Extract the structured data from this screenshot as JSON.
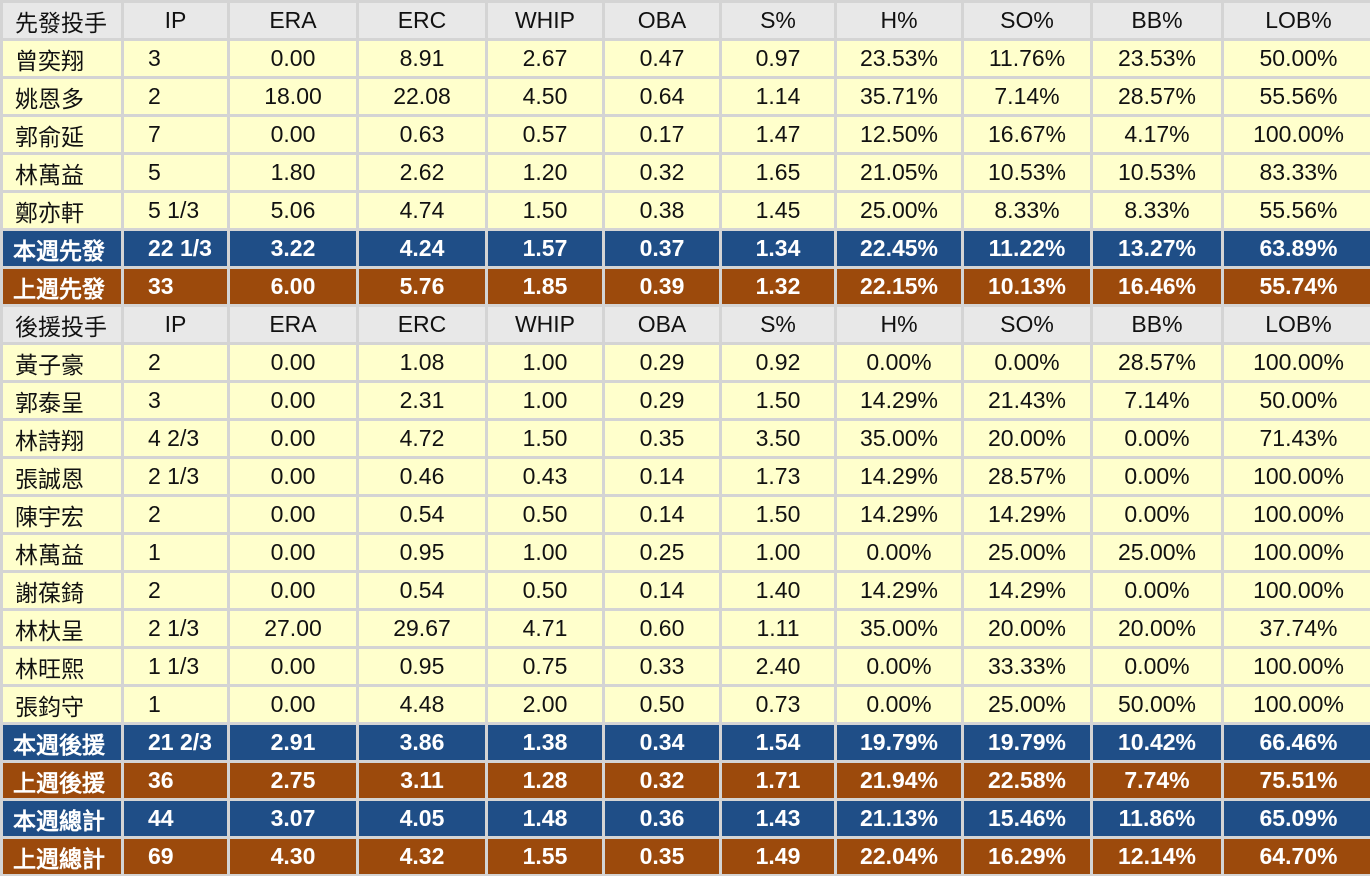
{
  "sections": [
    {
      "header": [
        "先發投手",
        "IP",
        "ERA",
        "ERC",
        "WHIP",
        "OBA",
        "S%",
        "H%",
        "SO%",
        "BB%",
        "LOB%"
      ],
      "rows": [
        [
          "曾奕翔",
          "3",
          "0.00",
          "8.91",
          "2.67",
          "0.47",
          "0.97",
          "23.53%",
          "11.76%",
          "23.53%",
          "50.00%"
        ],
        [
          "姚恩多",
          "2",
          "18.00",
          "22.08",
          "4.50",
          "0.64",
          "1.14",
          "35.71%",
          "7.14%",
          "28.57%",
          "55.56%"
        ],
        [
          "郭俞延",
          "7",
          "0.00",
          "0.63",
          "0.57",
          "0.17",
          "1.47",
          "12.50%",
          "16.67%",
          "4.17%",
          "100.00%"
        ],
        [
          "林萬益",
          "5",
          "1.80",
          "2.62",
          "1.20",
          "0.32",
          "1.65",
          "21.05%",
          "10.53%",
          "10.53%",
          "83.33%"
        ],
        [
          "鄭亦軒",
          "5 1/3",
          "5.06",
          "4.74",
          "1.50",
          "0.38",
          "1.45",
          "25.00%",
          "8.33%",
          "8.33%",
          "55.56%"
        ]
      ],
      "totals": [
        [
          "本週先發",
          "22 1/3",
          "3.22",
          "4.24",
          "1.57",
          "0.37",
          "1.34",
          "22.45%",
          "11.22%",
          "13.27%",
          "63.89%"
        ],
        [
          "上週先發",
          "33",
          "6.00",
          "5.76",
          "1.85",
          "0.39",
          "1.32",
          "22.15%",
          "10.13%",
          "16.46%",
          "55.74%"
        ]
      ]
    },
    {
      "header": [
        "後援投手",
        "IP",
        "ERA",
        "ERC",
        "WHIP",
        "OBA",
        "S%",
        "H%",
        "SO%",
        "BB%",
        "LOB%"
      ],
      "rows": [
        [
          "黃子豪",
          "2",
          "0.00",
          "1.08",
          "1.00",
          "0.29",
          "0.92",
          "0.00%",
          "0.00%",
          "28.57%",
          "100.00%"
        ],
        [
          "郭泰呈",
          "3",
          "0.00",
          "2.31",
          "1.00",
          "0.29",
          "1.50",
          "14.29%",
          "21.43%",
          "7.14%",
          "50.00%"
        ],
        [
          "林詩翔",
          "4 2/3",
          "0.00",
          "4.72",
          "1.50",
          "0.35",
          "3.50",
          "35.00%",
          "20.00%",
          "0.00%",
          "71.43%"
        ],
        [
          "張誠恩",
          "2 1/3",
          "0.00",
          "0.46",
          "0.43",
          "0.14",
          "1.73",
          "14.29%",
          "28.57%",
          "0.00%",
          "100.00%"
        ],
        [
          "陳宇宏",
          "2",
          "0.00",
          "0.54",
          "0.50",
          "0.14",
          "1.50",
          "14.29%",
          "14.29%",
          "0.00%",
          "100.00%"
        ],
        [
          "林萬益",
          "1",
          "0.00",
          "0.95",
          "1.00",
          "0.25",
          "1.00",
          "0.00%",
          "25.00%",
          "25.00%",
          "100.00%"
        ],
        [
          "謝葆錡",
          "2",
          "0.00",
          "0.54",
          "0.50",
          "0.14",
          "1.40",
          "14.29%",
          "14.29%",
          "0.00%",
          "100.00%"
        ],
        [
          "林杕呈",
          "2 1/3",
          "27.00",
          "29.67",
          "4.71",
          "0.60",
          "1.11",
          "35.00%",
          "20.00%",
          "20.00%",
          "37.74%"
        ],
        [
          "林旺熙",
          "1 1/3",
          "0.00",
          "0.95",
          "0.75",
          "0.33",
          "2.40",
          "0.00%",
          "33.33%",
          "0.00%",
          "100.00%"
        ],
        [
          "張鈞守",
          "1",
          "0.00",
          "4.48",
          "2.00",
          "0.50",
          "0.73",
          "0.00%",
          "25.00%",
          "50.00%",
          "100.00%"
        ]
      ],
      "totals": [
        [
          "本週後援",
          "21 2/3",
          "2.91",
          "3.86",
          "1.38",
          "0.34",
          "1.54",
          "19.79%",
          "19.79%",
          "10.42%",
          "66.46%"
        ],
        [
          "上週後援",
          "36",
          "2.75",
          "3.11",
          "1.28",
          "0.32",
          "1.71",
          "21.94%",
          "22.58%",
          "7.74%",
          "75.51%"
        ],
        [
          "本週總計",
          "44",
          "3.07",
          "4.05",
          "1.48",
          "0.36",
          "1.43",
          "21.13%",
          "15.46%",
          "11.86%",
          "65.09%"
        ],
        [
          "上週總計",
          "69",
          "4.30",
          "4.32",
          "1.55",
          "0.35",
          "1.49",
          "22.04%",
          "16.29%",
          "12.14%",
          "64.70%"
        ]
      ]
    }
  ]
}
